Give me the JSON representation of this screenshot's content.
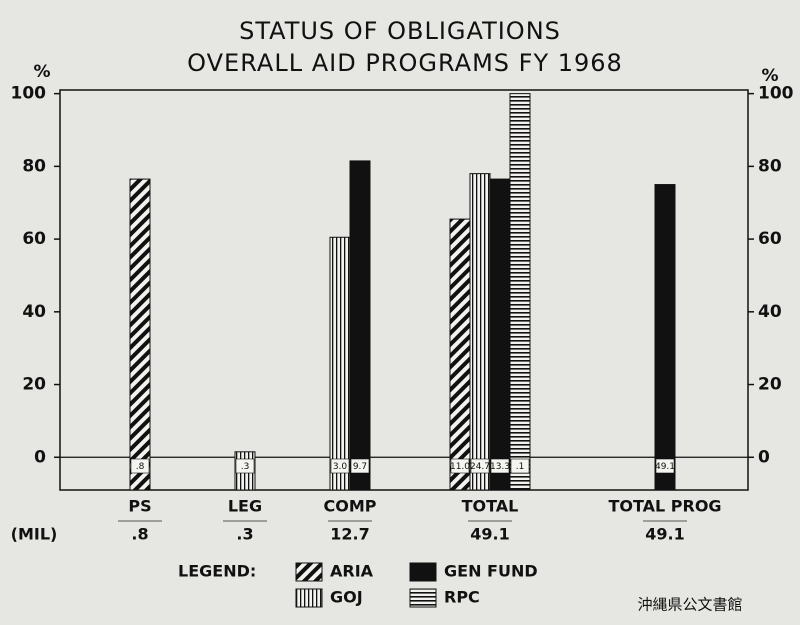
{
  "chart_data": {
    "type": "bar",
    "title": "STATUS OF OBLIGATIONS",
    "subtitle": "OVERALL AID PROGRAMS FY 1968",
    "y_axis_label": "%",
    "y2_axis_label": "%",
    "categories": [
      "PS",
      "LEG",
      "COMP",
      "TOTAL",
      "TOTAL PROG"
    ],
    "series": [
      {
        "name": "ARIA",
        "color": "#111111",
        "pattern": "diagonal",
        "values": [
          76.5,
          null,
          null,
          65.5,
          null
        ],
        "amount_labels": [
          ".8",
          null,
          null,
          "11.0",
          null
        ]
      },
      {
        "name": "GOJ",
        "color": "#111111",
        "pattern": "vertical",
        "values": [
          null,
          1.5,
          60.5,
          78,
          null
        ],
        "amount_labels": [
          null,
          ".3",
          "3.0",
          "24.7",
          null
        ]
      },
      {
        "name": "GEN FUND",
        "color": "#111111",
        "pattern": "solid",
        "values": [
          null,
          null,
          81.5,
          76.5,
          75
        ],
        "amount_labels": [
          null,
          null,
          "9.7",
          "13.3",
          "49.1"
        ]
      },
      {
        "name": "RPC",
        "color": "#111111",
        "pattern": "horizontal",
        "values": [
          null,
          null,
          null,
          100,
          null
        ],
        "amount_labels": [
          null,
          null,
          null,
          ".1",
          null
        ]
      }
    ],
    "ylim": [
      -9,
      101
    ],
    "yticks": [
      0,
      20,
      40,
      60,
      80,
      100
    ],
    "y2lim": [
      -9,
      101
    ],
    "y2ticks": [
      0,
      20,
      40,
      60,
      80,
      100
    ],
    "mil_label": "(MIL)",
    "mil_totals": [
      ".8",
      ".3",
      "12.7",
      "49.1",
      "49.1"
    ],
    "legend_title": "LEGEND:",
    "watermark": "沖縄県公文書館"
  }
}
